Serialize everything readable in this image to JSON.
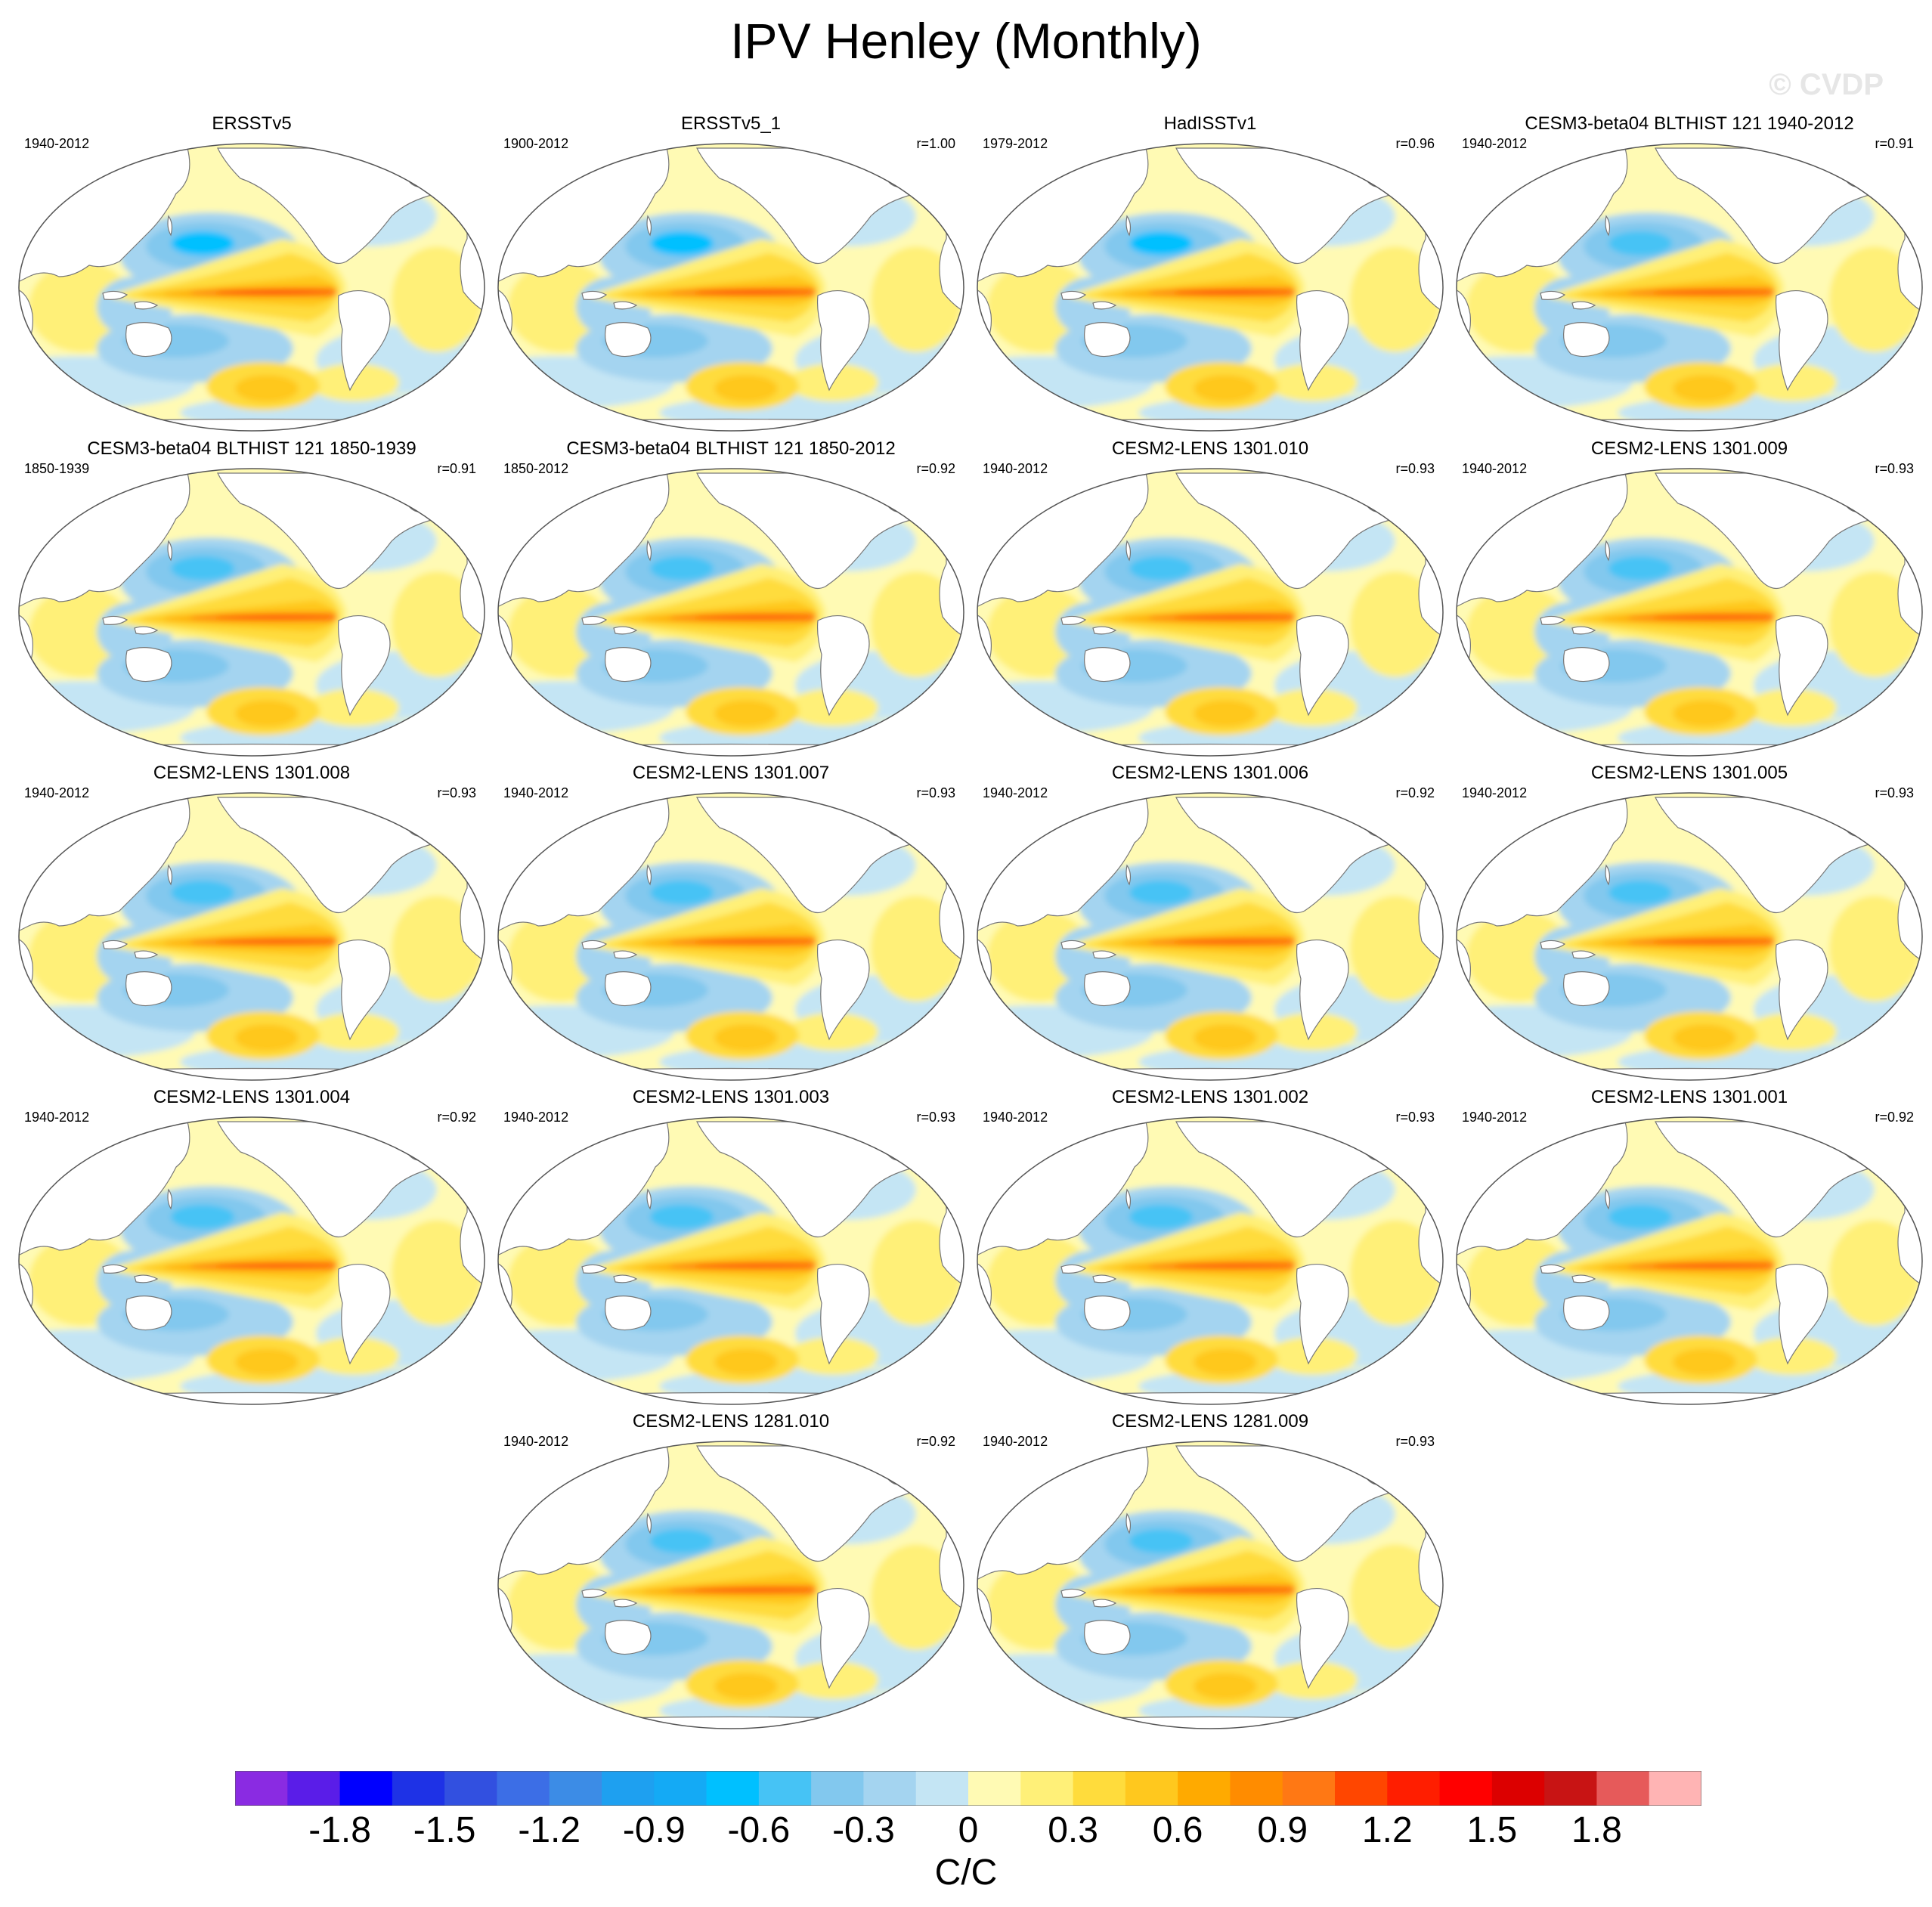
{
  "page": {
    "title": "IPV Henley (Monthly)",
    "watermark": "© CVDP"
  },
  "chart_data": {
    "type": "map-panels",
    "variable": "IPV Henley regression pattern",
    "units": "C/C",
    "panels": [
      {
        "name": "ERSSTv5",
        "period": "1940-2012",
        "r": "",
        "style": "obs"
      },
      {
        "name": "ERSSTv5_1",
        "period": "1900-2012",
        "r": "r=1.00",
        "style": "obs"
      },
      {
        "name": "HadISSTv1",
        "period": "1979-2012",
        "r": "r=0.96",
        "style": "obs"
      },
      {
        "name": "CESM3-beta04 BLTHIST 121 1940-2012",
        "period": "1940-2012",
        "r": "r=0.91",
        "style": "cesm3"
      },
      {
        "name": "CESM3-beta04 BLTHIST 121 1850-1939",
        "period": "1850-1939",
        "r": "r=0.91",
        "style": "cesm3"
      },
      {
        "name": "CESM3-beta04 BLTHIST 121 1850-2012",
        "period": "1850-2012",
        "r": "r=0.92",
        "style": "cesm3"
      },
      {
        "name": "CESM2-LENS 1301.010",
        "period": "1940-2012",
        "r": "r=0.93",
        "style": "lens"
      },
      {
        "name": "CESM2-LENS 1301.009",
        "period": "1940-2012",
        "r": "r=0.93",
        "style": "lens"
      },
      {
        "name": "CESM2-LENS 1301.008",
        "period": "1940-2012",
        "r": "r=0.93",
        "style": "lens"
      },
      {
        "name": "CESM2-LENS 1301.007",
        "period": "1940-2012",
        "r": "r=0.93",
        "style": "lens"
      },
      {
        "name": "CESM2-LENS 1301.006",
        "period": "1940-2012",
        "r": "r=0.92",
        "style": "lens"
      },
      {
        "name": "CESM2-LENS 1301.005",
        "period": "1940-2012",
        "r": "r=0.93",
        "style": "lens"
      },
      {
        "name": "CESM2-LENS 1301.004",
        "period": "1940-2012",
        "r": "r=0.92",
        "style": "lens"
      },
      {
        "name": "CESM2-LENS 1301.003",
        "period": "1940-2012",
        "r": "r=0.93",
        "style": "lens"
      },
      {
        "name": "CESM2-LENS 1301.002",
        "period": "1940-2012",
        "r": "r=0.93",
        "style": "lens"
      },
      {
        "name": "CESM2-LENS 1301.001",
        "period": "1940-2012",
        "r": "r=0.92",
        "style": "lens"
      },
      {
        "name": "CESM2-LENS 1281.010",
        "period": "1940-2012",
        "r": "r=0.92",
        "style": "lens"
      },
      {
        "name": "CESM2-LENS 1281.009",
        "period": "1940-2012",
        "r": "r=0.93",
        "style": "lens"
      }
    ],
    "colorbar": {
      "colors": [
        "#8a2be2",
        "#5a1de8",
        "#0000ff",
        "#1e32e6",
        "#3250e0",
        "#3c6ee6",
        "#3c8ce6",
        "#1ea0f0",
        "#14aaf5",
        "#00c0ff",
        "#46c3f5",
        "#82c8ee",
        "#a4d4f0",
        "#c4e5f4",
        "#fffab4",
        "#fff078",
        "#ffdc3c",
        "#ffc81e",
        "#ffaa00",
        "#ff8c00",
        "#ff7814",
        "#ff4600",
        "#ff1e00",
        "#ff0000",
        "#dc0000",
        "#c81414",
        "#e65a5a",
        "#ffb4b4"
      ],
      "tick_labels": [
        "-1.8",
        "-1.5",
        "-1.2",
        "-0.9",
        "-0.6",
        "-0.3",
        "0",
        "0.3",
        "0.6",
        "0.9",
        "1.2",
        "1.5",
        "1.8"
      ],
      "tick_values": [
        -1.8,
        -1.5,
        -1.2,
        -0.9,
        -0.6,
        -0.3,
        0,
        0.3,
        0.6,
        0.9,
        1.2,
        1.5,
        1.8
      ],
      "range": [
        -2.1,
        2.1
      ],
      "step": 0.15
    }
  }
}
